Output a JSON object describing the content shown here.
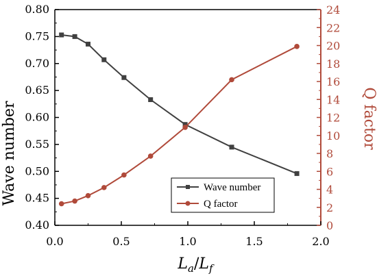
{
  "chart_data": {
    "type": "line",
    "title": "",
    "xlabel": "",
    "xlabel_parts": {
      "numerator": "L",
      "numerator_sub": "a",
      "slash": "/",
      "denominator": "L",
      "denominator_sub": "f"
    },
    "ylabel_left": "Wave number",
    "ylabel_right": "Q factor",
    "xlim": [
      0.0,
      2.0
    ],
    "ylim_left": [
      0.4,
      0.8
    ],
    "ylim_right": [
      0,
      24
    ],
    "x_ticks": [
      "0.0",
      "0.5",
      "1.0",
      "1.5",
      "2.0"
    ],
    "y_left_ticks": [
      "0.40",
      "0.45",
      "0.50",
      "0.55",
      "0.60",
      "0.65",
      "0.70",
      "0.75",
      "0.80"
    ],
    "y_right_ticks": [
      "0",
      "2",
      "4",
      "6",
      "8",
      "10",
      "12",
      "14",
      "16",
      "18",
      "20",
      "22",
      "24"
    ],
    "grid": false,
    "legend_position": "bottom-right",
    "colors": {
      "wave": "#404040",
      "q": "#b04a3a",
      "axis": "#000000"
    },
    "series": [
      {
        "name": "Wave number",
        "axis": "left",
        "marker": "square",
        "x": [
          0.05,
          0.15,
          0.25,
          0.37,
          0.52,
          0.72,
          0.98,
          1.33,
          1.82
        ],
        "y": [
          0.753,
          0.75,
          0.736,
          0.707,
          0.674,
          0.633,
          0.587,
          0.545,
          0.496
        ]
      },
      {
        "name": "Q factor",
        "axis": "right",
        "marker": "circle",
        "x": [
          0.05,
          0.15,
          0.25,
          0.37,
          0.52,
          0.72,
          0.98,
          1.33,
          1.82
        ],
        "y": [
          2.4,
          2.7,
          3.3,
          4.2,
          5.6,
          7.7,
          10.9,
          16.2,
          19.9
        ]
      }
    ]
  }
}
